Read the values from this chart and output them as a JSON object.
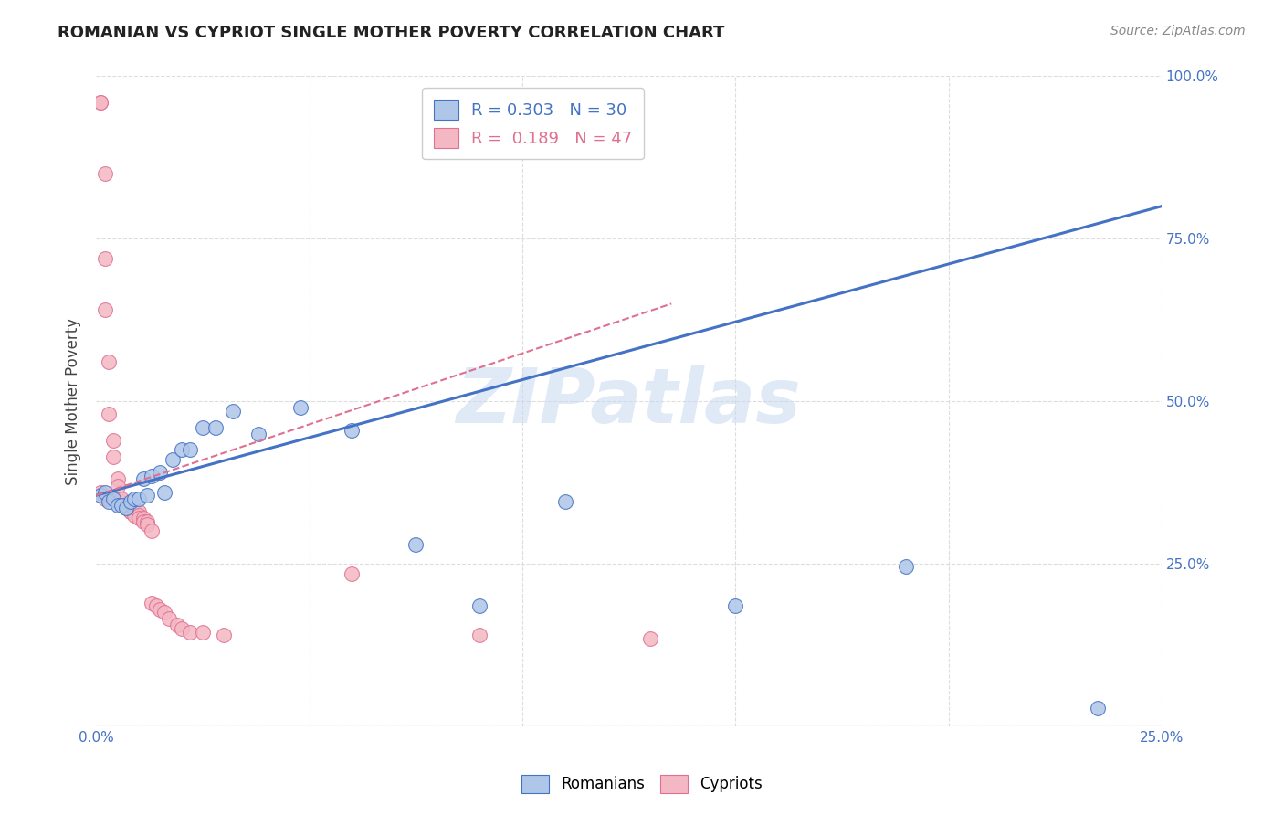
{
  "title": "ROMANIAN VS CYPRIOT SINGLE MOTHER POVERTY CORRELATION CHART",
  "source": "Source: ZipAtlas.com",
  "ylabel": "Single Mother Poverty",
  "xlabel": "",
  "xlim": [
    0.0,
    0.25
  ],
  "ylim": [
    0.0,
    1.0
  ],
  "xticks": [
    0.0,
    0.05,
    0.1,
    0.15,
    0.2,
    0.25
  ],
  "xtick_labels": [
    "0.0%",
    "",
    "",
    "",
    "",
    "25.0%"
  ],
  "yticks": [
    0.0,
    0.25,
    0.5,
    0.75,
    1.0
  ],
  "ytick_labels": [
    "",
    "25.0%",
    "50.0%",
    "75.0%",
    "100.0%"
  ],
  "romanian_R": 0.303,
  "romanian_N": 30,
  "cypriot_R": 0.189,
  "cypriot_N": 47,
  "romanian_color": "#aec6e8",
  "cypriot_color": "#f4b8c4",
  "romanian_line_color": "#4472c4",
  "cypriot_line_color": "#e07090",
  "grid_color": "#dddddd",
  "background_color": "#ffffff",
  "watermark": "ZIPatlas",
  "romanian_x": [
    0.001,
    0.002,
    0.003,
    0.004,
    0.005,
    0.006,
    0.007,
    0.008,
    0.009,
    0.01,
    0.011,
    0.012,
    0.013,
    0.015,
    0.016,
    0.018,
    0.02,
    0.022,
    0.025,
    0.028,
    0.032,
    0.038,
    0.048,
    0.06,
    0.075,
    0.09,
    0.11,
    0.15,
    0.19,
    0.235
  ],
  "romanian_y": [
    0.355,
    0.36,
    0.345,
    0.35,
    0.34,
    0.34,
    0.335,
    0.345,
    0.35,
    0.35,
    0.38,
    0.355,
    0.385,
    0.39,
    0.36,
    0.41,
    0.425,
    0.425,
    0.46,
    0.46,
    0.485,
    0.45,
    0.49,
    0.455,
    0.28,
    0.185,
    0.345,
    0.185,
    0.245,
    0.028
  ],
  "cypriot_x": [
    0.001,
    0.001,
    0.001,
    0.002,
    0.002,
    0.002,
    0.002,
    0.003,
    0.003,
    0.003,
    0.003,
    0.004,
    0.004,
    0.004,
    0.005,
    0.005,
    0.005,
    0.006,
    0.006,
    0.007,
    0.007,
    0.008,
    0.008,
    0.008,
    0.009,
    0.009,
    0.01,
    0.01,
    0.01,
    0.011,
    0.011,
    0.012,
    0.012,
    0.013,
    0.013,
    0.014,
    0.015,
    0.016,
    0.017,
    0.019,
    0.02,
    0.022,
    0.025,
    0.03,
    0.06,
    0.09,
    0.13
  ],
  "cypriot_y": [
    0.96,
    0.96,
    0.36,
    0.85,
    0.72,
    0.64,
    0.35,
    0.56,
    0.48,
    0.35,
    0.35,
    0.44,
    0.415,
    0.35,
    0.38,
    0.37,
    0.35,
    0.35,
    0.34,
    0.34,
    0.335,
    0.335,
    0.33,
    0.33,
    0.33,
    0.325,
    0.33,
    0.325,
    0.32,
    0.32,
    0.315,
    0.315,
    0.31,
    0.3,
    0.19,
    0.185,
    0.18,
    0.175,
    0.165,
    0.155,
    0.15,
    0.145,
    0.145,
    0.14,
    0.235,
    0.14,
    0.135
  ],
  "rom_line_x": [
    0.0,
    0.25
  ],
  "rom_line_y": [
    0.355,
    0.8
  ],
  "cyp_line_x": [
    0.0,
    0.135
  ],
  "cyp_line_y": [
    0.355,
    0.65
  ]
}
